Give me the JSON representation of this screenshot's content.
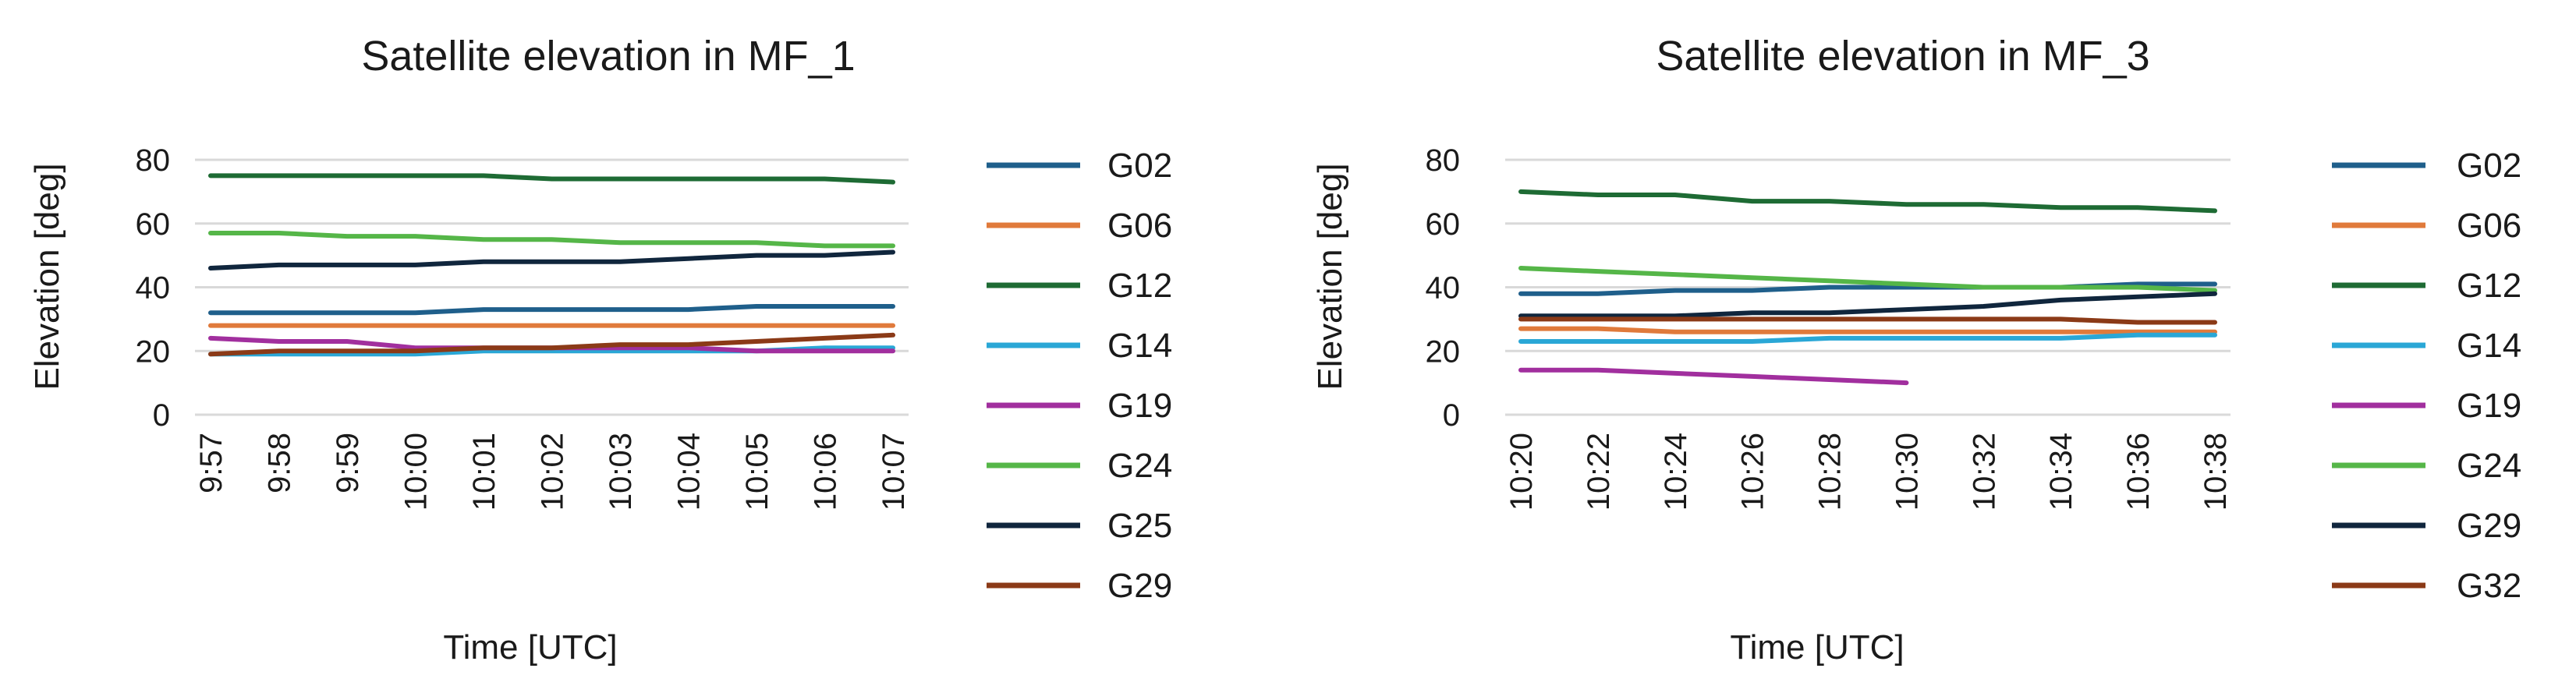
{
  "chart_data": [
    {
      "type": "line",
      "title": "Satellite elevation in MF_1",
      "xlabel": "Time [UTC]",
      "ylabel": "Elevation  [deg]",
      "ylim": [
        0,
        80
      ],
      "yticks": [
        "0",
        "20",
        "40",
        "60",
        "80"
      ],
      "categories": [
        "9:57",
        "9:58",
        "9:59",
        "10:00",
        "10:01",
        "10:02",
        "10:03",
        "10:04",
        "10:05",
        "10:06",
        "10:07"
      ],
      "grid": true,
      "legend_position": "right",
      "series": [
        {
          "name": "G02",
          "color": "#1f5f8b",
          "values": [
            32,
            32,
            32,
            32,
            33,
            33,
            33,
            33,
            34,
            34,
            34
          ]
        },
        {
          "name": "G06",
          "color": "#e07a3b",
          "values": [
            28,
            28,
            28,
            28,
            28,
            28,
            28,
            28,
            28,
            28,
            28
          ]
        },
        {
          "name": "G12",
          "color": "#1e6b34",
          "values": [
            75,
            75,
            75,
            75,
            75,
            74,
            74,
            74,
            74,
            74,
            73
          ]
        },
        {
          "name": "G14",
          "color": "#2aa7d6",
          "values": [
            19,
            19,
            19,
            19,
            20,
            20,
            20,
            20,
            20,
            21,
            21
          ]
        },
        {
          "name": "G19",
          "color": "#a12f9e",
          "values": [
            24,
            23,
            23,
            21,
            21,
            21,
            21,
            21,
            20,
            20,
            20
          ]
        },
        {
          "name": "G24",
          "color": "#55b648",
          "values": [
            57,
            57,
            56,
            56,
            55,
            55,
            54,
            54,
            54,
            53,
            53
          ]
        },
        {
          "name": "G25",
          "color": "#10263d",
          "values": [
            46,
            47,
            47,
            47,
            48,
            48,
            48,
            49,
            50,
            50,
            51
          ]
        },
        {
          "name": "G29",
          "color": "#8b3a17",
          "values": [
            19,
            20,
            20,
            20,
            21,
            21,
            22,
            22,
            23,
            24,
            25
          ]
        }
      ]
    },
    {
      "type": "line",
      "title": "Satellite elevation in MF_3",
      "xlabel": "Time [UTC]",
      "ylabel": "Elevation  [deg]",
      "ylim": [
        0,
        80
      ],
      "yticks": [
        "0",
        "20",
        "40",
        "60",
        "80"
      ],
      "categories": [
        "10:20",
        "10:22",
        "10:24",
        "10:26",
        "10:28",
        "10:30",
        "10:32",
        "10:34",
        "10:36",
        "10:38"
      ],
      "grid": true,
      "legend_position": "right",
      "series": [
        {
          "name": "G02",
          "color": "#1f5f8b",
          "values": [
            38,
            38,
            39,
            39,
            40,
            40,
            40,
            40,
            41,
            41
          ]
        },
        {
          "name": "G06",
          "color": "#e07a3b",
          "values": [
            27,
            27,
            26,
            26,
            26,
            26,
            26,
            26,
            26,
            26
          ]
        },
        {
          "name": "G12",
          "color": "#1e6b34",
          "values": [
            70,
            69,
            69,
            67,
            67,
            66,
            66,
            65,
            65,
            64
          ]
        },
        {
          "name": "G14",
          "color": "#2aa7d6",
          "values": [
            23,
            23,
            23,
            23,
            24,
            24,
            24,
            24,
            25,
            25
          ]
        },
        {
          "name": "G19",
          "color": "#a12f9e",
          "values": [
            14,
            14,
            13,
            12,
            11,
            10,
            null,
            null,
            null,
            null
          ]
        },
        {
          "name": "G24",
          "color": "#55b648",
          "values": [
            46,
            45,
            44,
            43,
            42,
            41,
            40,
            40,
            40,
            39
          ]
        },
        {
          "name": "G29",
          "color": "#10263d",
          "values": [
            31,
            31,
            31,
            32,
            32,
            33,
            34,
            36,
            37,
            38
          ]
        },
        {
          "name": "G32",
          "color": "#8b3a17",
          "values": [
            30,
            30,
            30,
            30,
            30,
            30,
            30,
            30,
            29,
            29
          ]
        }
      ]
    }
  ]
}
